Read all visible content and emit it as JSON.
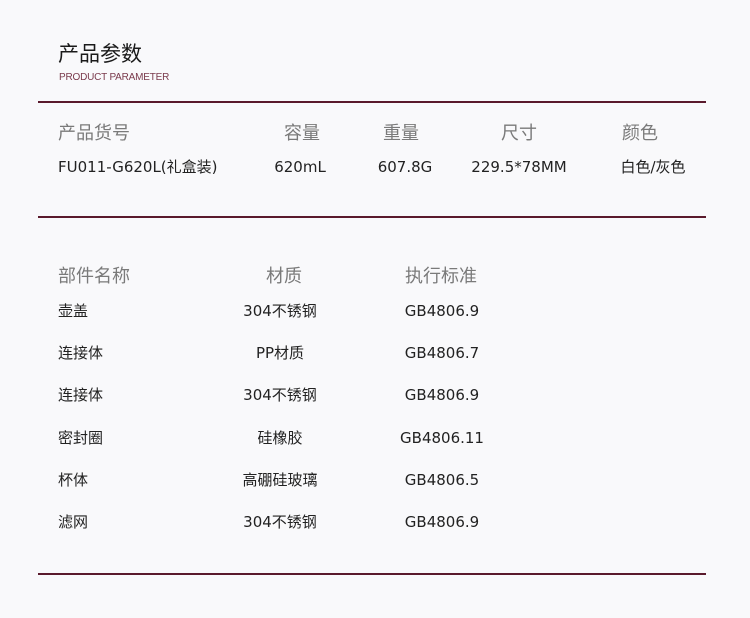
{
  "header": {
    "title": "产品参数",
    "subtitle": "PRODUCT PARAMETER"
  },
  "accent_color": "#5a1a2c",
  "product": {
    "headers": [
      "产品货号",
      "容量",
      "重量",
      "尺寸",
      "颜色"
    ],
    "values": [
      "FU011-G620L(礼盒装)",
      "620mL",
      "607.8G",
      "229.5*78MM",
      "白色/灰色"
    ]
  },
  "parts": {
    "headers": [
      "部件名称",
      "材质",
      "执行标准"
    ],
    "rows": [
      [
        "壶盖",
        "304不锈钢",
        "GB4806.9"
      ],
      [
        "连接体",
        "PP材质",
        "GB4806.7"
      ],
      [
        "连接体",
        "304不锈钢",
        "GB4806.9"
      ],
      [
        "密封圈",
        "硅橡胶",
        "GB4806.11"
      ],
      [
        "杯体",
        "高硼硅玻璃",
        "GB4806.5"
      ],
      [
        "滤网",
        "304不锈钢",
        "GB4806.9"
      ]
    ]
  }
}
